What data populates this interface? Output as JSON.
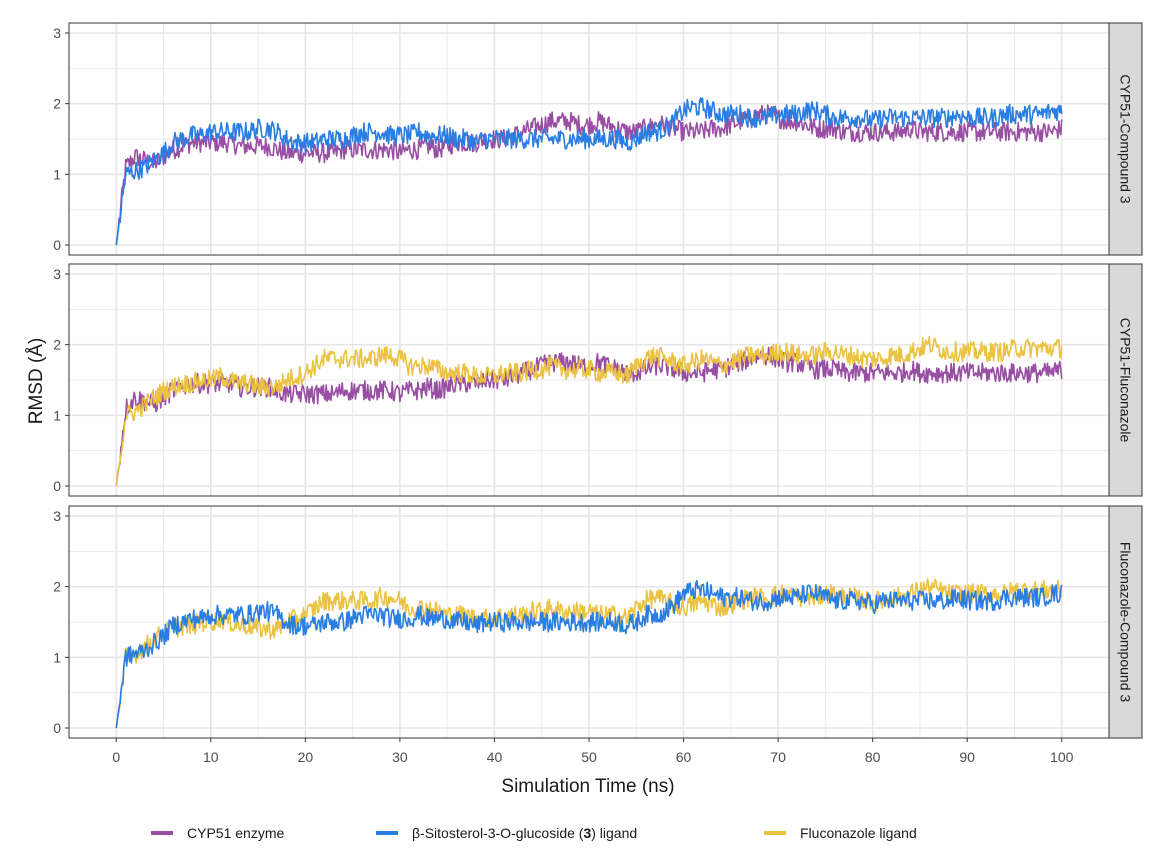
{
  "chart_data": {
    "type": "line",
    "layout": "faceted-3-rows",
    "xlabel": "Simulation Time (ns)",
    "ylabel": "RMSD (Å)",
    "xlim": [
      -5,
      105
    ],
    "ylim": [
      0,
      3.1
    ],
    "x_ticks": [
      0,
      10,
      20,
      30,
      40,
      50,
      60,
      70,
      80,
      90,
      100
    ],
    "y_ticks": [
      0,
      1,
      2,
      3
    ],
    "grid": true,
    "legend_position": "bottom",
    "x": [
      0,
      1,
      2,
      3,
      4,
      5,
      6,
      7,
      8,
      9,
      10,
      11,
      12,
      13,
      14,
      15,
      16,
      17,
      18,
      19,
      20,
      21,
      22,
      23,
      24,
      25,
      26,
      27,
      28,
      29,
      30,
      31,
      32,
      33,
      34,
      35,
      36,
      37,
      38,
      39,
      40,
      41,
      42,
      43,
      44,
      45,
      46,
      47,
      48,
      49,
      50,
      51,
      52,
      53,
      54,
      55,
      56,
      57,
      58,
      59,
      60,
      61,
      62,
      63,
      64,
      65,
      66,
      67,
      68,
      69,
      70,
      71,
      72,
      73,
      74,
      75,
      76,
      77,
      78,
      79,
      80,
      81,
      82,
      83,
      84,
      85,
      86,
      87,
      88,
      89,
      90,
      91,
      92,
      93,
      94,
      95,
      96,
      97,
      98,
      99,
      100
    ],
    "series_styles": {
      "CYP51 enzyme": "#984ea3",
      "β-Sitosterol-3-O-glucoside (3) ligand": "#2a7de1",
      "Fluconazole ligand": "#ecc242"
    },
    "legend": [
      {
        "key": "enzyme",
        "label_pre": "CYP51 enzyme",
        "label_bold": "",
        "label_post": "",
        "color": "#984ea3"
      },
      {
        "key": "compound",
        "label_pre": "β-Sitosterol-3-O-glucoside (",
        "label_bold": "3",
        "label_post": ") ligand",
        "color": "#2a7de1"
      },
      {
        "key": "fluconazole",
        "label_pre": "Fluconazole ligand",
        "label_bold": "",
        "label_post": "",
        "color": "#ecc242"
      }
    ],
    "panels": [
      {
        "strip": "CYP51-Compound 3",
        "series": [
          {
            "name": "CYP51 enzyme",
            "values": [
              0.0,
              1.1,
              1.25,
              1.2,
              1.15,
              1.25,
              1.35,
              1.4,
              1.45,
              1.45,
              1.45,
              1.45,
              1.45,
              1.4,
              1.4,
              1.4,
              1.4,
              1.35,
              1.3,
              1.3,
              1.3,
              1.3,
              1.3,
              1.3,
              1.35,
              1.35,
              1.35,
              1.35,
              1.35,
              1.35,
              1.3,
              1.35,
              1.35,
              1.4,
              1.35,
              1.4,
              1.45,
              1.45,
              1.45,
              1.5,
              1.5,
              1.5,
              1.55,
              1.6,
              1.65,
              1.7,
              1.75,
              1.75,
              1.75,
              1.7,
              1.7,
              1.75,
              1.7,
              1.65,
              1.6,
              1.6,
              1.65,
              1.7,
              1.7,
              1.65,
              1.6,
              1.6,
              1.6,
              1.65,
              1.65,
              1.7,
              1.75,
              1.8,
              1.85,
              1.85,
              1.8,
              1.75,
              1.75,
              1.7,
              1.65,
              1.65,
              1.65,
              1.6,
              1.6,
              1.6,
              1.6,
              1.6,
              1.6,
              1.6,
              1.65,
              1.6,
              1.6,
              1.6,
              1.6,
              1.6,
              1.6,
              1.6,
              1.6,
              1.6,
              1.6,
              1.6,
              1.6,
              1.6,
              1.6,
              1.6,
              1.65
            ]
          },
          {
            "name": "β-Sitosterol-3-O-glucoside (3) ligand",
            "values": [
              0.0,
              1.0,
              1.05,
              1.1,
              1.2,
              1.3,
              1.45,
              1.5,
              1.55,
              1.55,
              1.6,
              1.6,
              1.6,
              1.6,
              1.6,
              1.65,
              1.65,
              1.6,
              1.5,
              1.45,
              1.45,
              1.45,
              1.5,
              1.5,
              1.5,
              1.55,
              1.6,
              1.6,
              1.6,
              1.55,
              1.55,
              1.55,
              1.6,
              1.55,
              1.55,
              1.55,
              1.5,
              1.5,
              1.45,
              1.5,
              1.5,
              1.5,
              1.5,
              1.5,
              1.5,
              1.5,
              1.5,
              1.5,
              1.5,
              1.5,
              1.5,
              1.5,
              1.5,
              1.5,
              1.45,
              1.5,
              1.6,
              1.6,
              1.65,
              1.75,
              1.9,
              1.95,
              1.95,
              1.9,
              1.85,
              1.85,
              1.85,
              1.8,
              1.8,
              1.8,
              1.85,
              1.85,
              1.85,
              1.9,
              1.9,
              1.85,
              1.8,
              1.8,
              1.8,
              1.8,
              1.75,
              1.8,
              1.8,
              1.8,
              1.8,
              1.8,
              1.8,
              1.8,
              1.8,
              1.85,
              1.8,
              1.8,
              1.8,
              1.8,
              1.85,
              1.85,
              1.85,
              1.85,
              1.85,
              1.9,
              1.9
            ]
          }
        ]
      },
      {
        "strip": "CYP51-Fluconazole",
        "series": [
          {
            "name": "CYP51 enzyme",
            "values": [
              0.0,
              1.1,
              1.25,
              1.2,
              1.15,
              1.25,
              1.35,
              1.4,
              1.45,
              1.45,
              1.45,
              1.45,
              1.45,
              1.4,
              1.4,
              1.4,
              1.4,
              1.35,
              1.3,
              1.3,
              1.3,
              1.3,
              1.3,
              1.3,
              1.35,
              1.35,
              1.35,
              1.35,
              1.35,
              1.35,
              1.3,
              1.35,
              1.35,
              1.4,
              1.35,
              1.4,
              1.45,
              1.45,
              1.45,
              1.5,
              1.5,
              1.5,
              1.55,
              1.6,
              1.65,
              1.7,
              1.75,
              1.75,
              1.75,
              1.7,
              1.7,
              1.75,
              1.7,
              1.65,
              1.6,
              1.6,
              1.65,
              1.7,
              1.7,
              1.65,
              1.6,
              1.6,
              1.6,
              1.65,
              1.65,
              1.7,
              1.75,
              1.8,
              1.85,
              1.85,
              1.8,
              1.75,
              1.75,
              1.7,
              1.65,
              1.65,
              1.65,
              1.6,
              1.6,
              1.6,
              1.6,
              1.6,
              1.6,
              1.6,
              1.65,
              1.6,
              1.6,
              1.6,
              1.6,
              1.6,
              1.6,
              1.6,
              1.6,
              1.6,
              1.6,
              1.6,
              1.6,
              1.6,
              1.6,
              1.6,
              1.65
            ]
          },
          {
            "name": "Fluconazole ligand",
            "values": [
              0.0,
              1.0,
              1.05,
              1.15,
              1.25,
              1.35,
              1.4,
              1.45,
              1.45,
              1.5,
              1.5,
              1.55,
              1.5,
              1.45,
              1.45,
              1.4,
              1.4,
              1.4,
              1.5,
              1.55,
              1.6,
              1.7,
              1.8,
              1.8,
              1.8,
              1.8,
              1.8,
              1.8,
              1.85,
              1.85,
              1.8,
              1.7,
              1.7,
              1.7,
              1.65,
              1.6,
              1.6,
              1.6,
              1.55,
              1.55,
              1.55,
              1.6,
              1.6,
              1.6,
              1.65,
              1.65,
              1.7,
              1.65,
              1.65,
              1.65,
              1.65,
              1.6,
              1.6,
              1.6,
              1.55,
              1.7,
              1.8,
              1.85,
              1.8,
              1.75,
              1.7,
              1.75,
              1.8,
              1.75,
              1.7,
              1.75,
              1.8,
              1.85,
              1.85,
              1.85,
              1.9,
              1.9,
              1.85,
              1.85,
              1.85,
              1.9,
              1.9,
              1.85,
              1.85,
              1.8,
              1.8,
              1.8,
              1.85,
              1.85,
              1.9,
              1.95,
              2.0,
              1.95,
              1.9,
              1.9,
              1.9,
              1.9,
              1.9,
              1.9,
              1.9,
              1.95,
              1.95,
              1.95,
              1.95,
              1.95,
              1.95
            ]
          }
        ]
      },
      {
        "strip": "Fluconazole-Compound 3",
        "series": [
          {
            "name": "Fluconazole ligand",
            "values": [
              0.0,
              1.0,
              1.05,
              1.15,
              1.25,
              1.35,
              1.4,
              1.45,
              1.45,
              1.5,
              1.5,
              1.55,
              1.5,
              1.45,
              1.45,
              1.4,
              1.4,
              1.4,
              1.5,
              1.55,
              1.6,
              1.7,
              1.8,
              1.8,
              1.8,
              1.8,
              1.8,
              1.8,
              1.85,
              1.85,
              1.8,
              1.7,
              1.7,
              1.7,
              1.65,
              1.6,
              1.6,
              1.6,
              1.55,
              1.55,
              1.55,
              1.6,
              1.6,
              1.6,
              1.65,
              1.65,
              1.7,
              1.65,
              1.65,
              1.65,
              1.65,
              1.6,
              1.6,
              1.6,
              1.55,
              1.7,
              1.8,
              1.85,
              1.8,
              1.75,
              1.7,
              1.75,
              1.8,
              1.75,
              1.7,
              1.75,
              1.8,
              1.85,
              1.85,
              1.85,
              1.9,
              1.9,
              1.85,
              1.85,
              1.85,
              1.9,
              1.9,
              1.85,
              1.85,
              1.8,
              1.8,
              1.8,
              1.85,
              1.85,
              1.9,
              1.95,
              2.0,
              1.95,
              1.9,
              1.9,
              1.9,
              1.9,
              1.9,
              1.9,
              1.9,
              1.95,
              1.95,
              1.95,
              1.95,
              1.95,
              1.95
            ]
          },
          {
            "name": "β-Sitosterol-3-O-glucoside (3) ligand",
            "values": [
              0.0,
              1.0,
              1.05,
              1.1,
              1.2,
              1.3,
              1.45,
              1.5,
              1.55,
              1.55,
              1.6,
              1.6,
              1.6,
              1.6,
              1.6,
              1.65,
              1.65,
              1.6,
              1.5,
              1.45,
              1.45,
              1.45,
              1.5,
              1.5,
              1.5,
              1.55,
              1.6,
              1.6,
              1.6,
              1.55,
              1.55,
              1.55,
              1.6,
              1.55,
              1.55,
              1.55,
              1.5,
              1.5,
              1.45,
              1.5,
              1.5,
              1.5,
              1.5,
              1.5,
              1.5,
              1.5,
              1.5,
              1.5,
              1.5,
              1.5,
              1.5,
              1.5,
              1.5,
              1.5,
              1.45,
              1.5,
              1.6,
              1.6,
              1.65,
              1.75,
              1.9,
              1.95,
              1.95,
              1.9,
              1.85,
              1.85,
              1.85,
              1.8,
              1.8,
              1.8,
              1.85,
              1.85,
              1.85,
              1.9,
              1.9,
              1.85,
              1.8,
              1.8,
              1.8,
              1.8,
              1.75,
              1.8,
              1.8,
              1.8,
              1.8,
              1.8,
              1.8,
              1.8,
              1.8,
              1.85,
              1.8,
              1.8,
              1.8,
              1.8,
              1.85,
              1.85,
              1.85,
              1.85,
              1.85,
              1.9,
              1.9
            ]
          }
        ]
      }
    ]
  }
}
